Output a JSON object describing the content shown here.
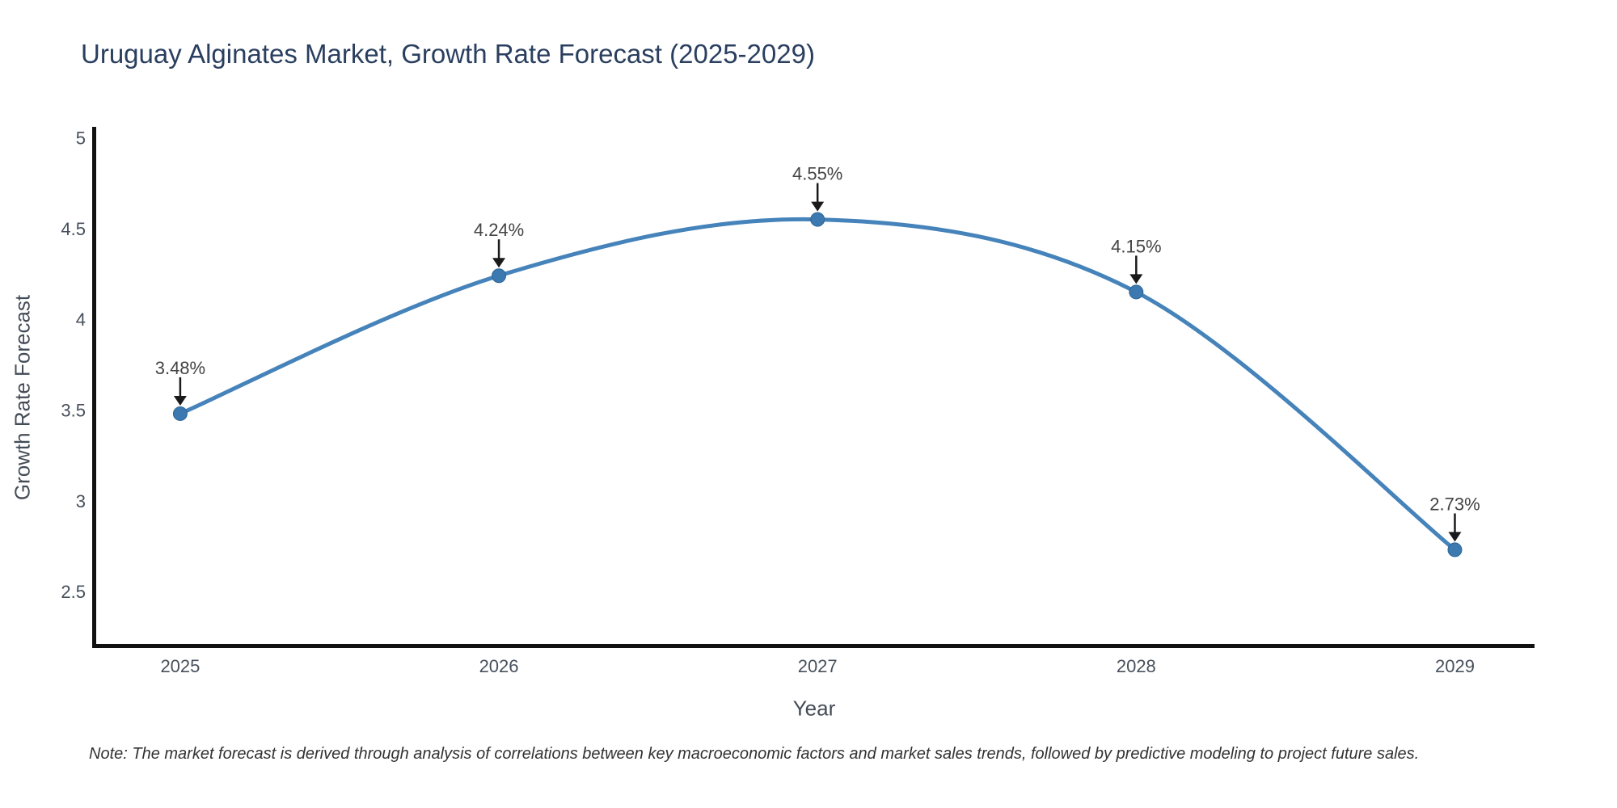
{
  "page": {
    "background": "#ffffff"
  },
  "chart_data": {
    "type": "line",
    "title": "Uruguay Alginates Market, Growth Rate Forecast (2025-2029)",
    "xlabel": "Year",
    "ylabel": "Growth Rate Forecast",
    "x": [
      2025,
      2026,
      2027,
      2028,
      2029
    ],
    "series": [
      {
        "name": "Growth Rate Forecast",
        "values": [
          3.48,
          4.24,
          4.55,
          4.15,
          2.73
        ]
      }
    ],
    "point_labels": [
      "3.48%",
      "4.24%",
      "4.55%",
      "4.15%",
      "2.73%"
    ],
    "xticks": [
      "2025",
      "2026",
      "2027",
      "2028",
      "2029"
    ],
    "xtick_values": [
      2025,
      2026,
      2027,
      2028,
      2029
    ],
    "yticks": [
      "5",
      "4.5",
      "4",
      "3.5",
      "3",
      "2.5"
    ],
    "ytick_values": [
      5,
      4.5,
      4,
      3.5,
      3,
      2.5
    ],
    "xlim": [
      2024.73,
      2029.25
    ],
    "ylim": [
      2.2,
      5.06
    ],
    "line_shape": "spline",
    "grid": false,
    "legend_position": "none",
    "colors": {
      "line": "#4583ba",
      "marker": "#3b79b0",
      "marker_edge": "#2e6594",
      "annotation_text": "#444444",
      "arrow": "#1a1a1a",
      "axis": "#111111",
      "tick_text": "#47505c",
      "title_text": "#2a3f5f"
    }
  },
  "note": {
    "text": "Note: The market forecast is derived through analysis of correlations between key macroeconomic factors and market sales trends, followed by predictive modeling to project future sales."
  }
}
